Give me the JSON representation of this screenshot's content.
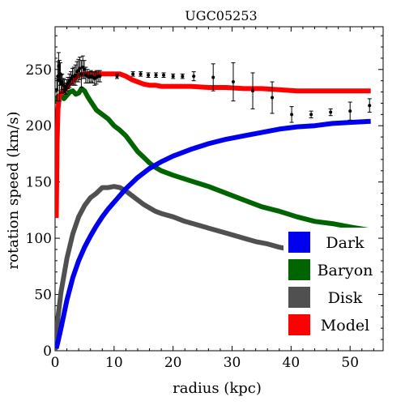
{
  "chart_data": {
    "type": "line",
    "title": "UGC05253",
    "xlabel": "radius (kpc)",
    "ylabel": "rotation speed (km/s)",
    "xlim": [
      0,
      55.6
    ],
    "ylim": [
      0,
      288
    ],
    "xticks": [
      0,
      10,
      20,
      30,
      40,
      50
    ],
    "yticks": [
      0,
      50,
      100,
      150,
      200,
      250
    ],
    "grid": false,
    "legend_position": "bottom-right",
    "series": [
      {
        "name": "Dark",
        "color": "#0000ee",
        "x": [
          0.2,
          0.5,
          1,
          2,
          3,
          4,
          5,
          6,
          7,
          8,
          9,
          10,
          12,
          14,
          16,
          18,
          20,
          23,
          26,
          29,
          32,
          35,
          38,
          41,
          44,
          47,
          50,
          53.5
        ],
        "y": [
          2,
          8,
          20,
          45,
          65,
          80,
          92,
          102,
          111,
          119,
          126,
          132,
          144,
          154,
          162,
          168,
          173,
          179,
          184,
          188,
          191,
          194,
          197,
          199,
          200,
          202,
          203,
          204
        ]
      },
      {
        "name": "Baryon",
        "color": "#006400",
        "x": [
          0.2,
          0.5,
          1,
          1.5,
          2,
          2.5,
          3,
          3.5,
          4,
          4.5,
          5,
          5.5,
          6,
          7,
          8,
          9,
          10,
          11,
          12,
          13,
          14,
          15,
          16,
          17,
          18,
          20,
          23,
          26,
          29,
          32,
          35,
          38,
          41,
          44,
          47,
          50,
          53.5
        ],
        "y": [
          220,
          226,
          227,
          224,
          227,
          230,
          231,
          228,
          229,
          233,
          231,
          226,
          222,
          214,
          210,
          206,
          200,
          196,
          191,
          184,
          177,
          172,
          167,
          163,
          160,
          156,
          151,
          146,
          140,
          134,
          128,
          124,
          119,
          115,
          113,
          110,
          107
        ]
      },
      {
        "name": "Disk",
        "color": "#505050",
        "x": [
          0,
          0.5,
          1,
          2,
          3,
          4,
          5,
          6,
          7,
          8,
          9,
          10,
          11,
          12,
          13,
          14,
          15,
          16,
          17,
          18,
          20,
          22,
          24,
          26,
          28,
          30,
          32,
          34,
          36,
          38,
          40,
          42,
          44,
          46,
          48,
          50,
          53.5
        ],
        "y": [
          0,
          30,
          52,
          82,
          104,
          119,
          129,
          136,
          140,
          145,
          145,
          146,
          145,
          142,
          138,
          134,
          130,
          127,
          124,
          122,
          119,
          115,
          112,
          109,
          106,
          103,
          100,
          97,
          95,
          92,
          90,
          88,
          86,
          84,
          82,
          80,
          78
        ]
      },
      {
        "name": "Model",
        "color": "#ff0000",
        "x": [
          0.2,
          0.35,
          0.5,
          0.7,
          1,
          1.5,
          2,
          2.5,
          3,
          3.5,
          4,
          5,
          6,
          7,
          8,
          9,
          10,
          11,
          12,
          13,
          14,
          15,
          16,
          17,
          18,
          20,
          23,
          26,
          29,
          32,
          35,
          38,
          41,
          44,
          47,
          50,
          53.5
        ],
        "y": [
          118,
          185,
          215,
          226,
          229,
          231,
          234,
          238,
          240,
          243,
          245,
          246,
          246,
          246,
          246,
          246,
          246,
          246,
          244,
          241,
          239,
          237,
          236,
          236,
          235,
          235,
          235,
          234,
          234,
          233,
          233,
          232,
          231,
          231,
          231,
          231,
          231
        ]
      }
    ],
    "observed": {
      "marker": "black points with error bars",
      "points": [
        {
          "x": 0.3,
          "y": 232,
          "err": 10
        },
        {
          "x": 0.45,
          "y": 244,
          "err": 13
        },
        {
          "x": 0.6,
          "y": 253,
          "err": 12
        },
        {
          "x": 0.75,
          "y": 240,
          "err": 18
        },
        {
          "x": 0.9,
          "y": 246,
          "err": 10
        },
        {
          "x": 1.05,
          "y": 237,
          "err": 8
        },
        {
          "x": 1.2,
          "y": 239,
          "err": 7
        },
        {
          "x": 1.4,
          "y": 236,
          "err": 6
        },
        {
          "x": 1.6,
          "y": 235,
          "err": 6
        },
        {
          "x": 1.8,
          "y": 233,
          "err": 5
        },
        {
          "x": 2.0,
          "y": 236,
          "err": 5
        },
        {
          "x": 2.2,
          "y": 238,
          "err": 5
        },
        {
          "x": 2.45,
          "y": 240,
          "err": 6
        },
        {
          "x": 2.7,
          "y": 242,
          "err": 6
        },
        {
          "x": 2.95,
          "y": 244,
          "err": 7
        },
        {
          "x": 3.2,
          "y": 244,
          "err": 8
        },
        {
          "x": 3.45,
          "y": 245,
          "err": 9
        },
        {
          "x": 3.7,
          "y": 248,
          "err": 9
        },
        {
          "x": 3.95,
          "y": 249,
          "err": 10
        },
        {
          "x": 4.2,
          "y": 251,
          "err": 10
        },
        {
          "x": 4.45,
          "y": 246,
          "err": 12
        },
        {
          "x": 4.7,
          "y": 252,
          "err": 10
        },
        {
          "x": 4.95,
          "y": 250,
          "err": 8
        },
        {
          "x": 5.2,
          "y": 245,
          "err": 7
        },
        {
          "x": 5.5,
          "y": 244,
          "err": 6
        },
        {
          "x": 5.8,
          "y": 243,
          "err": 5
        },
        {
          "x": 6.1,
          "y": 244,
          "err": 5
        },
        {
          "x": 6.4,
          "y": 243,
          "err": 5
        },
        {
          "x": 6.7,
          "y": 242,
          "err": 6
        },
        {
          "x": 7.0,
          "y": 243,
          "err": 6
        },
        {
          "x": 7.3,
          "y": 244,
          "err": 5
        },
        {
          "x": 7.6,
          "y": 244,
          "err": 5
        },
        {
          "x": 10.5,
          "y": 244,
          "err": 2
        },
        {
          "x": 13.2,
          "y": 246,
          "err": 2
        },
        {
          "x": 14.5,
          "y": 246,
          "err": 2
        },
        {
          "x": 15.8,
          "y": 245,
          "err": 2
        },
        {
          "x": 17.1,
          "y": 245,
          "err": 2
        },
        {
          "x": 18.4,
          "y": 245,
          "err": 2
        },
        {
          "x": 20.0,
          "y": 244,
          "err": 2
        },
        {
          "x": 21.6,
          "y": 244,
          "err": 2
        },
        {
          "x": 23.5,
          "y": 244,
          "err": 4
        },
        {
          "x": 26.8,
          "y": 243,
          "err": 12
        },
        {
          "x": 30.2,
          "y": 239,
          "err": 17
        },
        {
          "x": 33.5,
          "y": 231,
          "err": 16
        },
        {
          "x": 36.8,
          "y": 225,
          "err": 14
        },
        {
          "x": 40.1,
          "y": 210,
          "err": 7
        },
        {
          "x": 43.4,
          "y": 210,
          "err": 3
        },
        {
          "x": 46.7,
          "y": 212,
          "err": 3
        },
        {
          "x": 50.0,
          "y": 213,
          "err": 8
        },
        {
          "x": 53.3,
          "y": 218,
          "err": 6
        }
      ]
    }
  }
}
